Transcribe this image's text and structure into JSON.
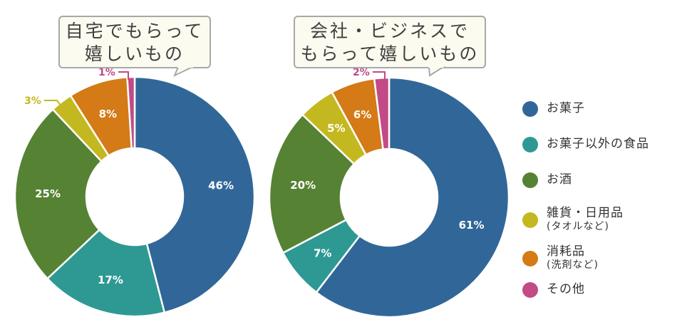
{
  "chart_data": [
    {
      "type": "pie",
      "subtype": "donut",
      "title": "自宅でもらって嬉しいもの",
      "categories": [
        "お菓子",
        "お菓子以外の食品",
        "お酒",
        "雑貨・日用品(タオルなど)",
        "消耗品(洗剤など)",
        "その他"
      ],
      "values": [
        46,
        17,
        25,
        3,
        8,
        1
      ],
      "labels": [
        "46%",
        "17%",
        "25%",
        "3%",
        "8%",
        "1%"
      ],
      "unit": "%"
    },
    {
      "type": "pie",
      "subtype": "donut",
      "title": "会社・ビジネスでもらって嬉しいもの",
      "categories": [
        "お菓子",
        "お菓子以外の食品",
        "お酒",
        "雑貨・日用品(タオルなど)",
        "消耗品(洗剤など)",
        "その他"
      ],
      "values": [
        61,
        7,
        20,
        5,
        6,
        2
      ],
      "labels": [
        "61%",
        "7%",
        "20%",
        "5%",
        "6%",
        "2%"
      ],
      "unit": "%"
    }
  ],
  "charts": {
    "home": {
      "title_line1": "自宅でもらって",
      "title_line2": "嬉しいもの"
    },
    "business": {
      "title_line1": "会社・ビジネスで",
      "title_line2": "もらって嬉しいもの"
    }
  },
  "legend": [
    {
      "label": "お菓子",
      "sub": "",
      "color": "#316798"
    },
    {
      "label": "お菓子以外の食品",
      "sub": "",
      "color": "#2e9993"
    },
    {
      "label": "お酒",
      "sub": "",
      "color": "#568234"
    },
    {
      "label": "雑貨・日用品",
      "sub": "(タオルなど)",
      "color": "#c4b820"
    },
    {
      "label": "消耗品",
      "sub": "(洗剤など)",
      "color": "#d47a16"
    },
    {
      "label": "その他",
      "sub": "",
      "color": "#c24a86"
    }
  ]
}
